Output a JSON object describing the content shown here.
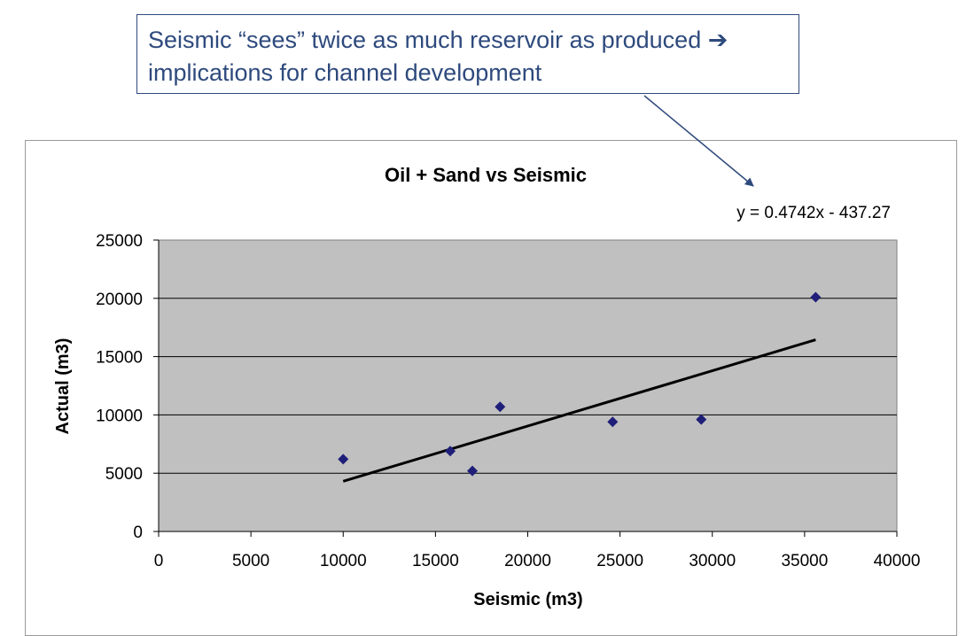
{
  "callout": {
    "line1": "Seismic “sees” twice as much reservoir as produced ➔",
    "line2": "implications for channel development"
  },
  "chart_data": {
    "type": "scatter",
    "title": "Oil + Sand vs Seismic",
    "xlabel": "Seismic (m3)",
    "ylabel": "Actual (m3)",
    "xlim": [
      0,
      40000
    ],
    "ylim": [
      0,
      25000
    ],
    "x_ticks": [
      "0",
      "5000",
      "10000",
      "15000",
      "20000",
      "25000",
      "30000",
      "35000",
      "40000"
    ],
    "y_ticks": [
      "0",
      "5000",
      "10000",
      "15000",
      "20000",
      "25000"
    ],
    "grid": true,
    "series": [
      {
        "points": [
          {
            "x": 10000,
            "y": 6200
          },
          {
            "x": 15800,
            "y": 6900
          },
          {
            "x": 17000,
            "y": 5200
          },
          {
            "x": 18500,
            "y": 10700
          },
          {
            "x": 24600,
            "y": 9400
          },
          {
            "x": 29400,
            "y": 9600
          },
          {
            "x": 35600,
            "y": 20100
          }
        ]
      }
    ],
    "trendline": {
      "equation": "y = 0.4742x - 437.27",
      "slope": 0.4742,
      "intercept": -437.27,
      "x_range": [
        10000,
        35600
      ]
    }
  },
  "colors": {
    "plot_background": "#c0c0c0",
    "marker": "#1f1f7a",
    "trendline": "#000000",
    "callout": "#2e4a7d"
  }
}
